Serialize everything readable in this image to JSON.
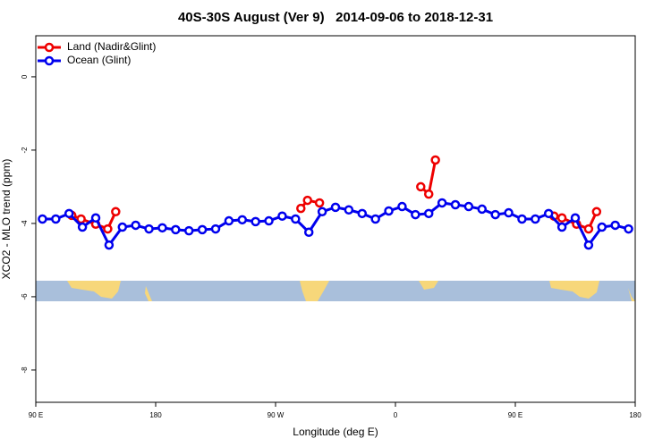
{
  "chart_data": {
    "type": "line",
    "title": "40S-30S August (Ver 9)   2014-09-06 to 2018-12-31",
    "x_label": "Longitude (deg E)",
    "y_label": "XCO2 - MLO trend (ppm)",
    "xlim": [
      90,
      540
    ],
    "ylim": [
      -8.88,
      1.12
    ],
    "xticks": [
      {
        "value": 90,
        "label": "90 E"
      },
      {
        "value": 180,
        "label": "180"
      },
      {
        "value": 270,
        "label": "90 W"
      },
      {
        "value": 360,
        "label": "0"
      },
      {
        "value": 450,
        "label": "90 E"
      },
      {
        "value": 540,
        "label": "180"
      }
    ],
    "yticks": [
      0,
      -2,
      -4,
      -6,
      -8
    ],
    "legend": "top-left",
    "series": [
      {
        "name": "Land (Nadir&Glint)",
        "color": "#ee0000",
        "x": [
          117,
          124,
          135,
          144,
          150,
          null,
          289,
          294,
          303,
          null,
          379,
          385,
          390,
          null,
          479,
          485,
          496,
          505,
          511
        ],
        "values": [
          -3.78,
          -3.88,
          -4.02,
          -4.15,
          -3.68,
          null,
          -3.59,
          -3.37,
          -3.44,
          null,
          -3.0,
          -3.2,
          -2.27,
          null,
          -3.8,
          -3.85,
          -4.02,
          -4.15,
          -3.68
        ]
      },
      {
        "name": "Ocean (Glint)",
        "color": "#0000ee",
        "x": [
          95,
          105,
          115,
          125,
          135,
          145,
          155,
          165,
          175,
          185,
          195,
          205,
          215,
          225,
          235,
          245,
          255,
          265,
          275,
          285,
          295,
          305,
          315,
          325,
          335,
          345,
          355,
          365,
          375,
          385,
          395,
          405,
          415,
          425,
          435,
          445,
          455,
          465,
          475,
          485,
          495,
          505,
          515,
          525,
          535
        ],
        "values": [
          -3.88,
          -3.88,
          -3.73,
          -4.1,
          -3.85,
          -4.59,
          -4.1,
          -4.05,
          -4.15,
          -4.12,
          -4.17,
          -4.2,
          -4.17,
          -4.15,
          -3.93,
          -3.9,
          -3.95,
          -3.93,
          -3.8,
          -3.88,
          -4.24,
          -3.68,
          -3.56,
          -3.63,
          -3.73,
          -3.88,
          -3.66,
          -3.54,
          -3.76,
          -3.73,
          -3.44,
          -3.49,
          -3.54,
          -3.61,
          -3.76,
          -3.71,
          -3.88,
          -3.88,
          -3.73,
          -4.1,
          -3.85,
          -4.59,
          -4.1,
          -4.05,
          -4.15
        ]
      }
    ]
  }
}
